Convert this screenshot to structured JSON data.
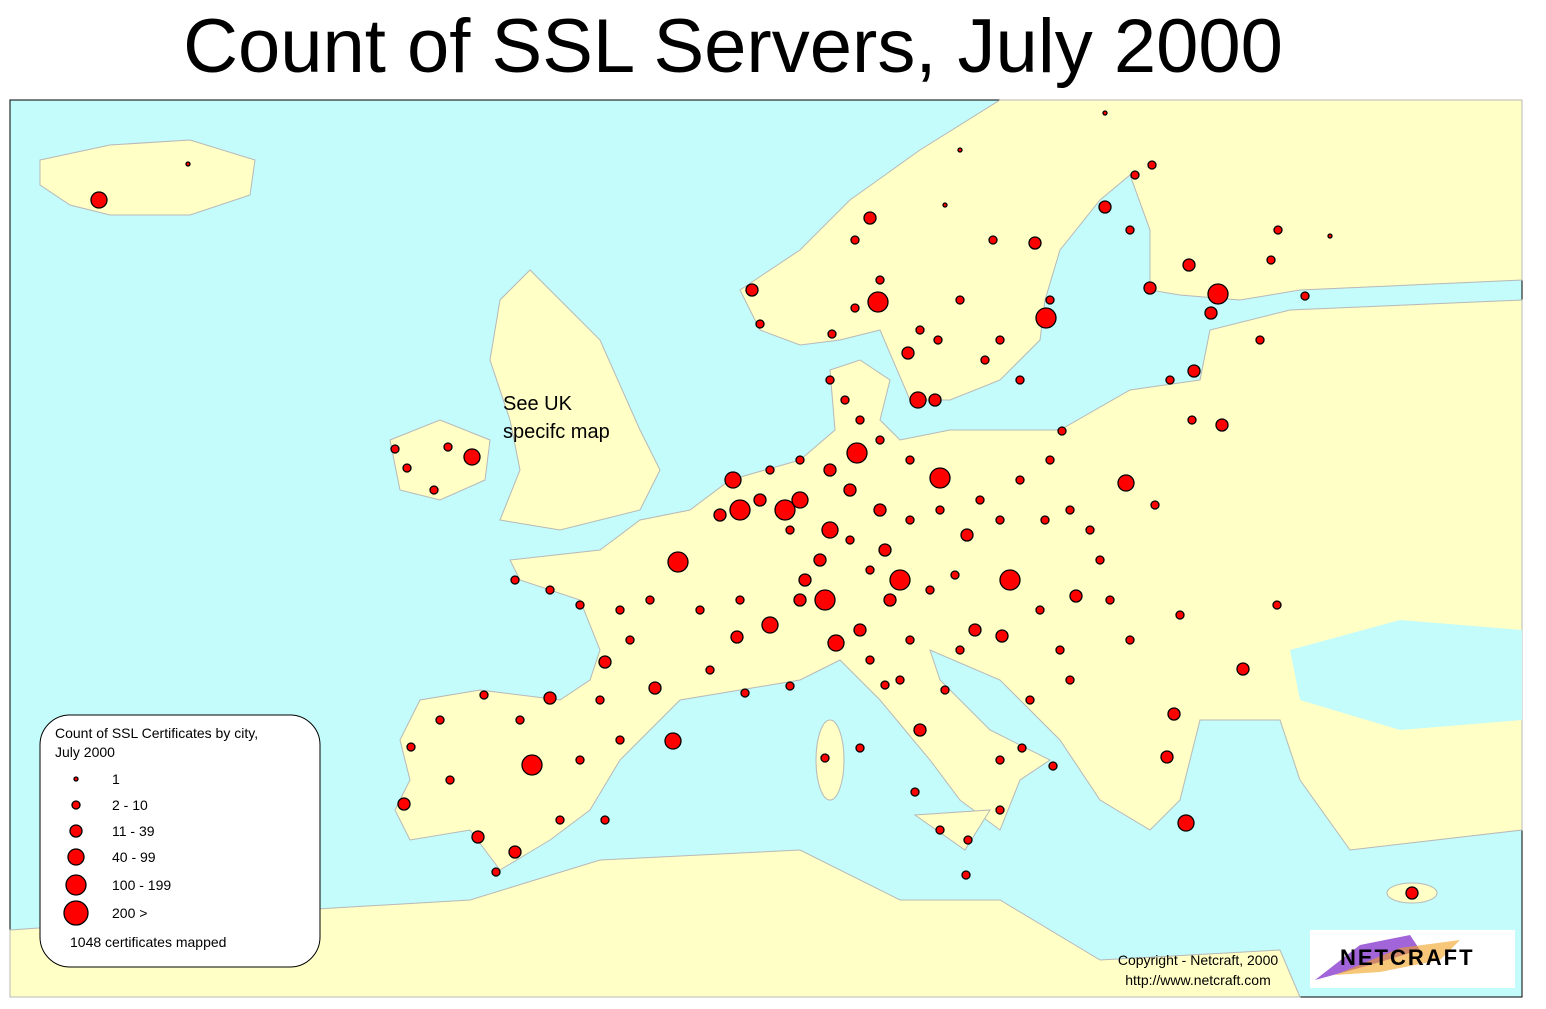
{
  "title": "Count of SSL Servers, July 2000",
  "annotation": [
    "See UK",
    "specifc map"
  ],
  "legend": {
    "title": [
      "Count of SSL Certificates by city,",
      "July 2000"
    ],
    "items": [
      "1",
      "2 - 10",
      "11 - 39",
      "40 - 99",
      "100 - 199",
      "200 >"
    ],
    "note": "1048 certificates mapped"
  },
  "copyright": [
    "Copyright - Netcraft, 2000",
    "http://www.netcraft.com"
  ],
  "logo": "NETCRAFT"
}
